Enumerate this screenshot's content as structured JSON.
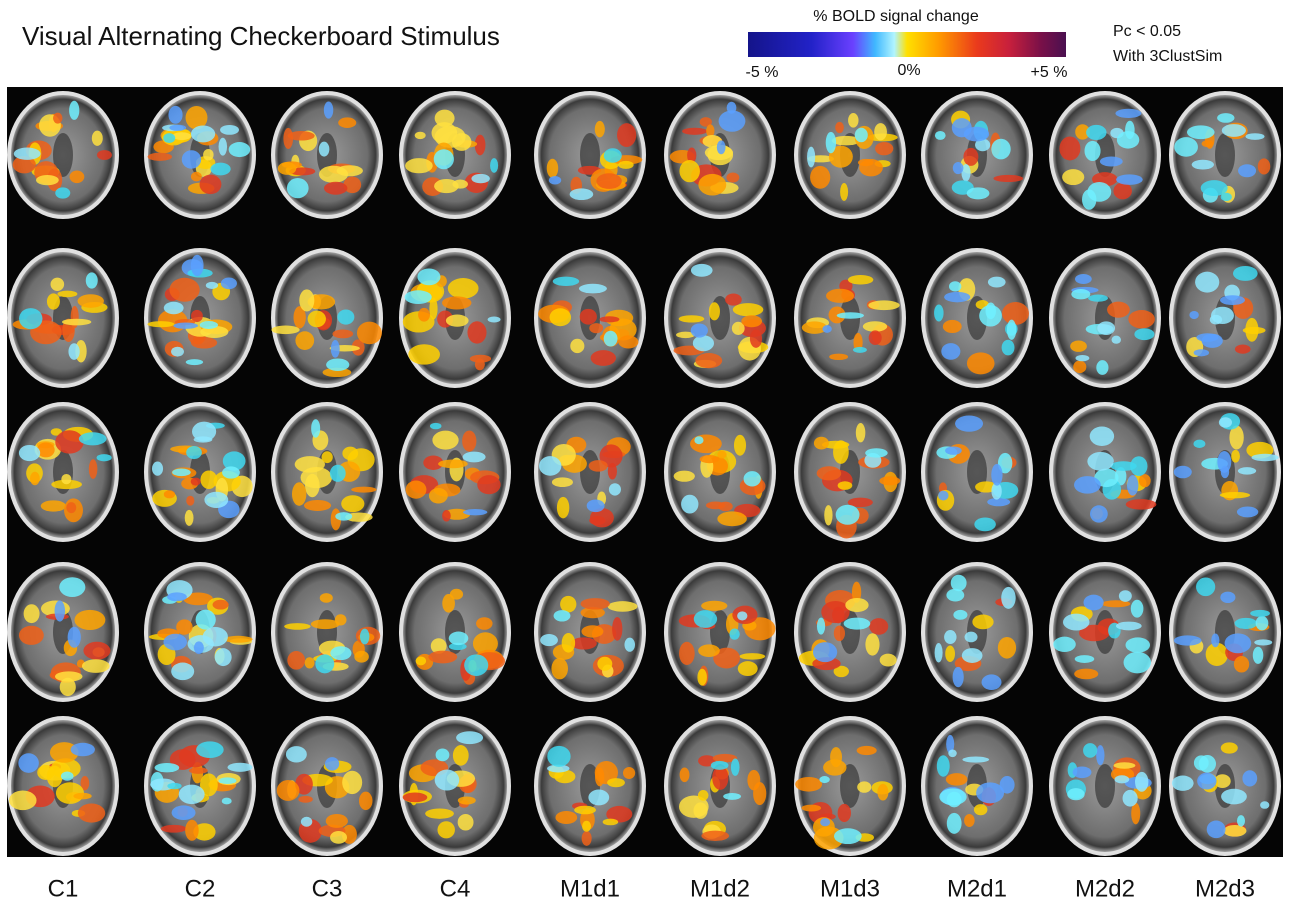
{
  "title": "Visual Alternating Checkerboard Stimulus",
  "colorbar": {
    "label": "% BOLD signal change",
    "min_label": "-5 %",
    "mid_label": "0%",
    "max_label": "+5 %"
  },
  "stats": [
    "Pc < 0.05",
    "With 3ClustSim"
  ],
  "columns": [
    "C1",
    "C2",
    "C3",
    "C4",
    "M1d1",
    "M1d2",
    "M1d3",
    "M2d1",
    "M2d2",
    "M2d3"
  ]
}
